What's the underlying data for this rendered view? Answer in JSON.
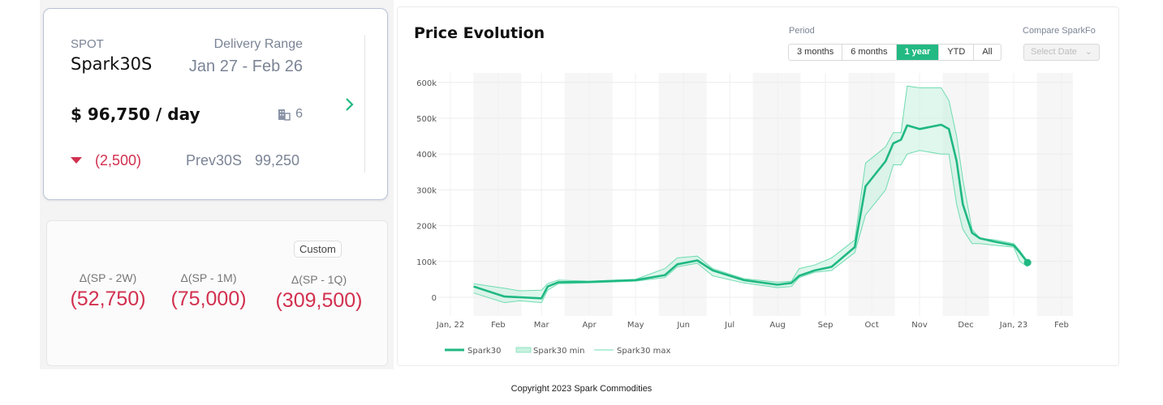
{
  "spot_card": {
    "label": "SPOT",
    "name": "Spark30S",
    "delivery_label": "Delivery Range",
    "delivery_range": "Jan 27 - Feb 26",
    "price": "$ 96,750 / day",
    "count": "6",
    "count_icon": "building-icon",
    "change": "(2,500)",
    "change_direction": "down",
    "prev_label": "Prev30S",
    "prev_value": "99,250",
    "next_icon": "chevron-right-icon"
  },
  "delta_card": {
    "custom_label": "Custom",
    "items": [
      {
        "label": "Δ(SP - 2W)",
        "value": "(52,750)"
      },
      {
        "label": "Δ(SP - 1M)",
        "value": "(75,000)"
      },
      {
        "label": "Δ(SP - 1Q)",
        "value": "(309,500)"
      }
    ]
  },
  "chart_panel": {
    "title": "Price Evolution",
    "period_label": "Period",
    "periods": [
      "3 months",
      "6 months",
      "1 year",
      "YTD",
      "All"
    ],
    "active_period": "1 year",
    "compare_label": "Compare SparkFo",
    "compare_placeholder": "Select Date"
  },
  "chart_data": {
    "type": "line",
    "xlabel": "",
    "ylabel": "",
    "ylim": [
      -50000,
      620000
    ],
    "xlim": [
      "2022-01-01",
      "2023-02-01"
    ],
    "grid": true,
    "legend": "bottom-left",
    "y_ticks": [
      "0",
      "100k",
      "200k",
      "300k",
      "400k",
      "500k",
      "600k"
    ],
    "y_tick_values": [
      0,
      100000,
      200000,
      300000,
      400000,
      500000,
      600000
    ],
    "x_ticks": [
      "Jan, 22",
      "Feb",
      "Mar",
      "Apr",
      "May",
      "Jun",
      "Jul",
      "Aug",
      "Sep",
      "Oct",
      "Nov",
      "Dec",
      "Jan, 23",
      "Feb"
    ],
    "x_tick_dates": [
      "2022-01-01",
      "2022-02-01",
      "2022-03-01",
      "2022-04-01",
      "2022-05-01",
      "2022-06-01",
      "2022-07-01",
      "2022-08-01",
      "2022-09-01",
      "2022-10-01",
      "2022-11-01",
      "2022-12-01",
      "2023-01-01",
      "2023-02-01"
    ],
    "x": [
      "2022-01-16",
      "2022-02-05",
      "2022-02-15",
      "2022-03-01",
      "2022-03-05",
      "2022-03-12",
      "2022-04-01",
      "2022-05-01",
      "2022-05-20",
      "2022-05-28",
      "2022-06-10",
      "2022-06-20",
      "2022-07-10",
      "2022-08-01",
      "2022-08-10",
      "2022-08-15",
      "2022-08-25",
      "2022-09-05",
      "2022-09-20",
      "2022-09-27",
      "2022-10-10",
      "2022-10-15",
      "2022-10-20",
      "2022-10-24",
      "2022-11-01",
      "2022-11-15",
      "2022-11-20",
      "2022-11-25",
      "2022-11-29",
      "2022-12-05",
      "2022-12-10",
      "2022-12-20",
      "2023-01-01",
      "2023-01-05",
      "2023-01-10"
    ],
    "series": [
      {
        "name": "Spark30",
        "color": "#1fb882",
        "values": [
          30000,
          2000,
          0,
          -3000,
          30000,
          42000,
          43000,
          48000,
          62000,
          92000,
          103000,
          75000,
          48000,
          35000,
          40000,
          60000,
          75000,
          85000,
          140000,
          310000,
          380000,
          430000,
          440000,
          480000,
          470000,
          482000,
          470000,
          380000,
          260000,
          180000,
          165000,
          155000,
          145000,
          125000,
          97000
        ]
      },
      {
        "name": "Spark30 min",
        "color": "#6fdcb0",
        "values": [
          12000,
          -15000,
          -10000,
          -15000,
          20000,
          38000,
          40000,
          45000,
          55000,
          85000,
          95000,
          60000,
          40000,
          27000,
          30000,
          55000,
          70000,
          75000,
          125000,
          230000,
          300000,
          370000,
          370000,
          400000,
          410000,
          400000,
          400000,
          260000,
          190000,
          150000,
          150000,
          145000,
          140000,
          100000,
          85000
        ]
      },
      {
        "name": "Spark30 max",
        "color": "#6fdcb0",
        "values": [
          38000,
          25000,
          18000,
          20000,
          38000,
          48000,
          45000,
          50000,
          80000,
          110000,
          115000,
          80000,
          52000,
          42000,
          45000,
          80000,
          90000,
          110000,
          160000,
          375000,
          420000,
          460000,
          460000,
          590000,
          585000,
          585000,
          550000,
          450000,
          330000,
          190000,
          165000,
          160000,
          150000,
          130000,
          100000
        ]
      }
    ]
  },
  "footer": {
    "copyright": "Copyright 2023 Spark Commodities"
  }
}
